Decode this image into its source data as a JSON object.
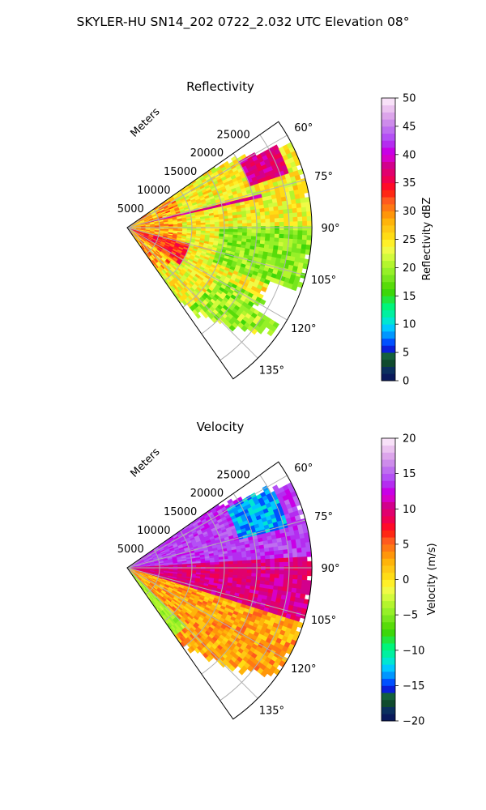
{
  "figure": {
    "suptitle": "SKYLER-HU  SN14_202  0722_2.032 UTC Elevation 08°"
  },
  "chart_data": [
    {
      "type": "heatmap",
      "subtype": "radar-ppi-sector",
      "title": "Reflectivity",
      "range_axis_label": "Meters",
      "range_ticks": [
        5000,
        10000,
        15000,
        20000,
        25000
      ],
      "range_max": 28500,
      "azimuth_ticks": [
        "60°",
        "75°",
        "90°",
        "105°",
        "120°",
        "135°"
      ],
      "azimuth_values": [
        60,
        75,
        90,
        105,
        120,
        135
      ],
      "azimuth_range": [
        55,
        145
      ],
      "grid": true,
      "colorbar": {
        "label": "Reflectivity dBZ",
        "min": 0,
        "max": 50,
        "ticks": [
          "0",
          "5",
          "10",
          "15",
          "20",
          "25",
          "30",
          "35",
          "40",
          "45",
          "50"
        ],
        "tick_values": [
          0,
          5,
          10,
          15,
          20,
          25,
          30,
          35,
          40,
          45,
          50
        ],
        "colors": [
          "#0a1a5c",
          "#0b2f5e",
          "#0f4a2e",
          "#14603c",
          "#0a1fd8",
          "#0050ff",
          "#0096ff",
          "#00c8ff",
          "#00e6d2",
          "#00f0a0",
          "#00f57a",
          "#20e640",
          "#3cd70a",
          "#58dc0a",
          "#78e61e",
          "#96f028",
          "#b4f52d",
          "#d2fa3c",
          "#f0fa46",
          "#fff028",
          "#ffdc14",
          "#ffc814",
          "#ffb40a",
          "#ff960a",
          "#ff7814",
          "#ff5a1e",
          "#ff2814",
          "#ff0a28",
          "#f00050",
          "#e1006e",
          "#d2008c",
          "#d700c8",
          "#c800e6",
          "#b42df0",
          "#b450f5",
          "#be6ef0",
          "#cd8ceb",
          "#dca5eb",
          "#ebc3f0",
          "#f8e1f8"
        ]
      },
      "field_summary": [
        {
          "region": "near-radar",
          "values_dbz": [
            25,
            35
          ]
        },
        {
          "region": "mid-range",
          "values_dbz": [
            20,
            30
          ]
        },
        {
          "region": "far north-east core",
          "values_dbz": [
            35,
            40
          ]
        },
        {
          "region": "east/south-east",
          "values_dbz": [
            18,
            25
          ]
        }
      ]
    },
    {
      "type": "heatmap",
      "subtype": "radar-ppi-sector",
      "title": "Velocity",
      "range_axis_label": "Meters",
      "range_ticks": [
        5000,
        10000,
        15000,
        20000,
        25000
      ],
      "range_max": 28500,
      "azimuth_ticks": [
        "60°",
        "75°",
        "90°",
        "105°",
        "120°",
        "135°"
      ],
      "azimuth_values": [
        60,
        75,
        90,
        105,
        120,
        135
      ],
      "azimuth_range": [
        55,
        145
      ],
      "grid": true,
      "colorbar": {
        "label": "Velocity (m/s)",
        "min": -20,
        "max": 20,
        "ticks": [
          "−20",
          "−15",
          "−10",
          "−5",
          "0",
          "5",
          "10",
          "15",
          "20"
        ],
        "tick_values": [
          -20,
          -15,
          -10,
          -5,
          0,
          5,
          10,
          15,
          20
        ],
        "colors": [
          "#0a1a5c",
          "#0b2f5e",
          "#0f4a2e",
          "#14603c",
          "#0a1fd8",
          "#0050ff",
          "#0096ff",
          "#00c8ff",
          "#00e6d2",
          "#00f0a0",
          "#00f57a",
          "#20e640",
          "#3cd70a",
          "#58dc0a",
          "#78e61e",
          "#96f028",
          "#b4f52d",
          "#d2fa3c",
          "#f0fa46",
          "#fff028",
          "#ffdc14",
          "#ffc814",
          "#ffb40a",
          "#ff960a",
          "#ff7814",
          "#ff5a1e",
          "#ff2814",
          "#ff0a28",
          "#f00050",
          "#e1006e",
          "#d2008c",
          "#d700c8",
          "#c800e6",
          "#b42df0",
          "#b450f5",
          "#be6ef0",
          "#cd8ceb",
          "#dca5eb",
          "#ebc3f0",
          "#f8e1f8"
        ]
      },
      "field_summary": [
        {
          "region": "north (55-85°)",
          "values_ms": [
            12,
            16
          ]
        },
        {
          "region": "far north-east pocket",
          "values_ms": [
            -15,
            -10
          ]
        },
        {
          "region": "east (90-110°)",
          "values_ms": [
            8,
            12
          ]
        },
        {
          "region": "south-east (110-140°)",
          "values_ms": [
            0,
            5
          ]
        },
        {
          "region": "edge strip near 140°",
          "values_ms": [
            -6,
            -2
          ]
        }
      ]
    }
  ]
}
